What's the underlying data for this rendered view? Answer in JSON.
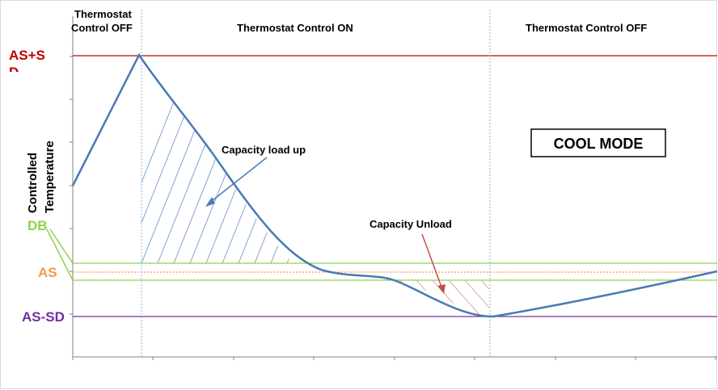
{
  "sections": {
    "left_line1": "Thermostat",
    "left_line2": "Control OFF",
    "middle": "Thermostat Control ON",
    "right": "Thermostat Control OFF"
  },
  "levels": {
    "as_plus_sd": "AS+S",
    "as_plus_sd_cut": "D",
    "db": "DB",
    "as": "AS",
    "as_minus_sd": "AS-SD"
  },
  "y_axis": {
    "line1": "Controlled",
    "line2": "Temperature"
  },
  "annotations": {
    "load_up": "Capacity load up",
    "unload": "Capacity Unload"
  },
  "mode_label": "COOL MODE",
  "colors": {
    "curve": "#4a7ab5",
    "as_plus_sd": "#c00000",
    "db": "#92d050",
    "as": "#f79646",
    "as_minus_sd": "#7030a0",
    "divider": "#8db3e2",
    "hatch_load": "#7fa3d0",
    "hatch_unload": "#e0a8a0"
  }
}
